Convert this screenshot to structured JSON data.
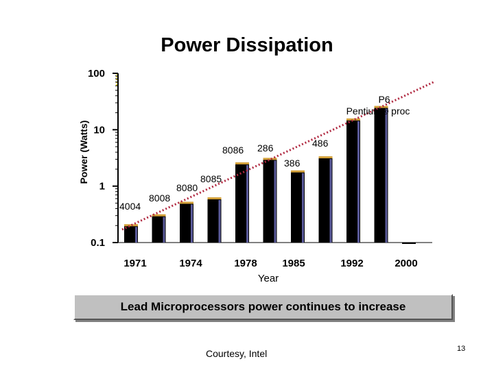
{
  "title": "Power Dissipation",
  "chart_data": {
    "type": "bar",
    "scale": "log",
    "ylabel": "Power (Watts)",
    "xlabel": "Year",
    "ylim": [
      0.1,
      100
    ],
    "y_ticks": [
      "100",
      "10",
      "1",
      "0.1"
    ],
    "x_ticks": [
      "1971",
      "1974",
      "1978",
      "1985",
      "1992",
      "2000"
    ],
    "bars": [
      {
        "label": "4004",
        "value": 0.2
      },
      {
        "label": "8008",
        "value": 0.3
      },
      {
        "label": "8080",
        "value": 0.5
      },
      {
        "label": "8085",
        "value": 0.6
      },
      {
        "label": "8086",
        "value": 2.5
      },
      {
        "label": "286",
        "value": 3.0
      },
      {
        "label": "386",
        "value": 1.8
      },
      {
        "label": "486",
        "value": 3.2
      },
      {
        "label": "",
        "value": 15
      },
      {
        "label": "",
        "value": 25
      },
      {
        "label": "",
        "value": 0.1
      }
    ],
    "processor_labels": [
      "4004",
      "8008",
      "8080",
      "8085",
      "8086",
      "286",
      "386",
      "486",
      "P6",
      "Pentium® proc"
    ],
    "trend": "exponential"
  },
  "banner": "Lead Microprocessors power continues to increase",
  "courtesy": "Courtesy, Intel",
  "page_number": "13",
  "colors": {
    "bar_fill": "#000000",
    "bar_highlight": "#5a5a9a",
    "bar_cap": "#d4a23a",
    "trend": "#b02840",
    "banner_bg": "#c0c0c0"
  }
}
